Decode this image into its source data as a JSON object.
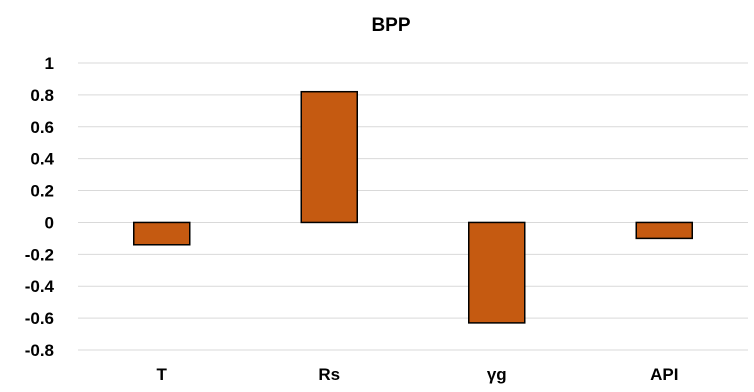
{
  "chart_data": {
    "type": "bar",
    "title": "BPP",
    "xlabel": "",
    "ylabel": "",
    "categories": [
      "T",
      "Rs",
      "γg",
      "API"
    ],
    "values": [
      -0.14,
      0.82,
      -0.63,
      -0.1
    ],
    "ylim": [
      -0.8,
      1
    ],
    "yticks": [
      1,
      0.8,
      0.6,
      0.4,
      0.2,
      0,
      -0.2,
      -0.4,
      -0.6,
      -0.8
    ],
    "ytick_labels": [
      "1",
      "0.8",
      "0.6",
      "0.4",
      "0.2",
      "0",
      "-0.2",
      "-0.4",
      "-0.6",
      "-0.8"
    ],
    "grid": true,
    "legend": "none",
    "bar_color": "#c55a11",
    "bar_edge_color": "#000000",
    "grid_color": "#d9d9d9"
  }
}
